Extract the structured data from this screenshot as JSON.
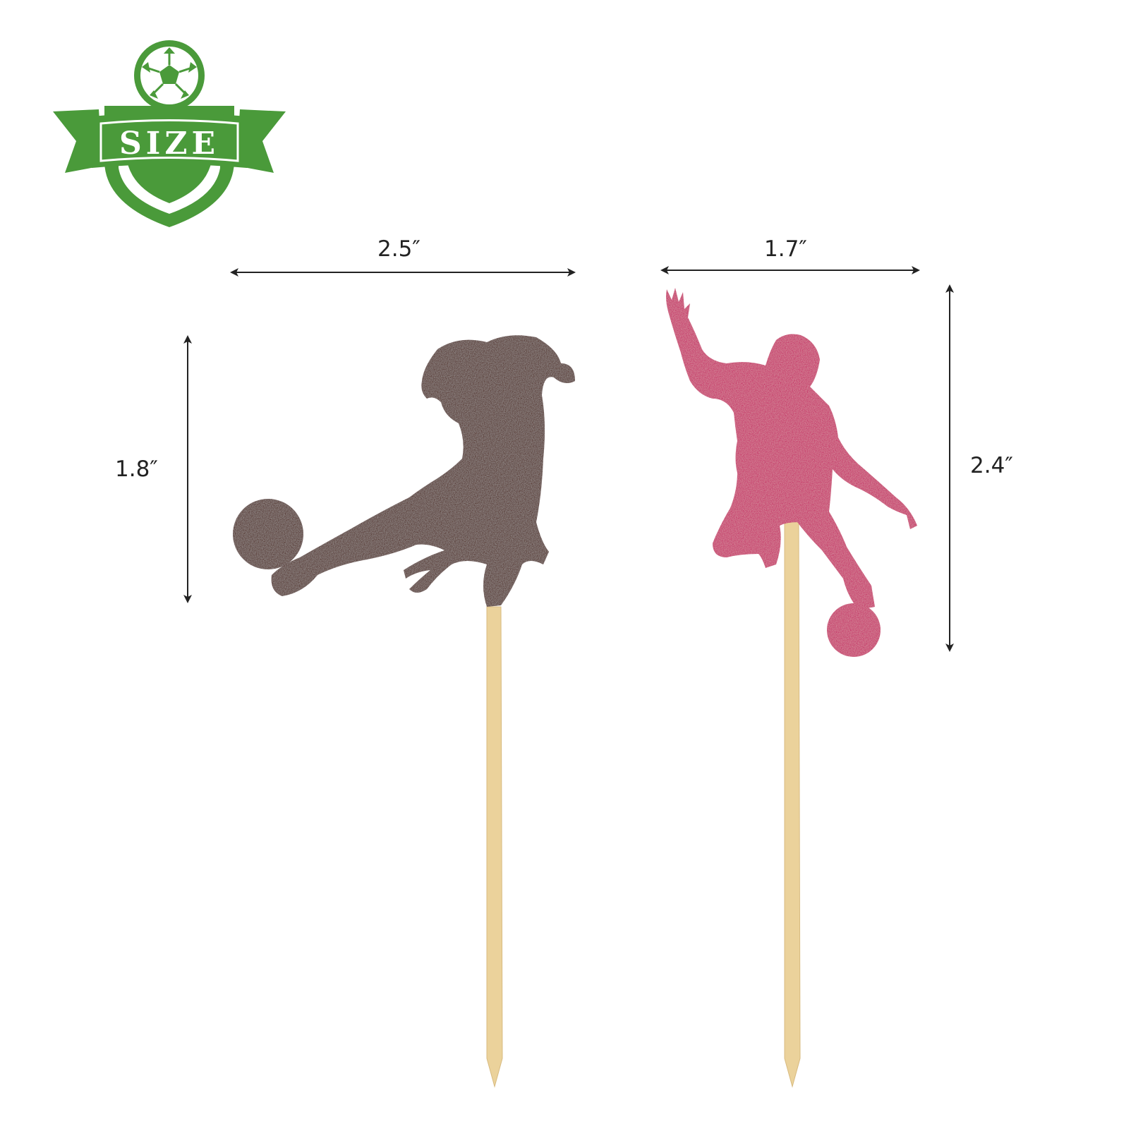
{
  "badge": {
    "text": "SIZE",
    "icon": "soccer-ball-icon",
    "color": "#4a9a3a"
  },
  "toppers": [
    {
      "name": "kicking-player",
      "color": "#4a1a10",
      "width_label": "2.5″",
      "height_label": "1.8″"
    },
    {
      "name": "dribbling-player",
      "color": "#c4185f",
      "width_label": "1.7″",
      "height_label": "2.4″"
    }
  ],
  "stick_color": "#ebd29b"
}
